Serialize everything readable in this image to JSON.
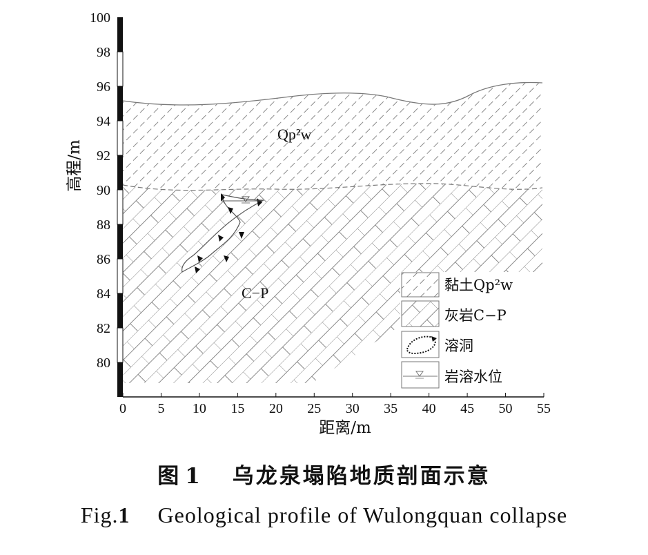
{
  "axes": {
    "y_label": "高程/m",
    "x_label": "距离/m",
    "y_ticks": [
      "100",
      "98",
      "96",
      "94",
      "92",
      "90",
      "88",
      "86",
      "84",
      "82",
      "80"
    ],
    "x_ticks": [
      "0",
      "5",
      "10",
      "15",
      "20",
      "25",
      "30",
      "35",
      "40",
      "45",
      "50",
      "55"
    ],
    "x_range": [
      0,
      55
    ],
    "y_range": [
      78,
      100
    ]
  },
  "regions": {
    "clay_label": "Qp²w",
    "limestone_label": "C−P"
  },
  "legend": {
    "items": [
      {
        "pattern": "clay",
        "label": "黏土Qp²w"
      },
      {
        "pattern": "limestone",
        "label": "灰岩C−P"
      },
      {
        "pattern": "cave",
        "label": "溶洞"
      },
      {
        "pattern": "water",
        "label": "岩溶水位"
      }
    ]
  },
  "caption": {
    "cn_fig": "图",
    "cn_num": "1",
    "cn_title": "乌龙泉塌陷地质剖面示意",
    "en_fig": "Fig.",
    "en_num": "1",
    "en_title": "Geological profile of Wulongquan collapse"
  },
  "colors": {
    "line": "#7a7a7a",
    "dark": "#111111"
  }
}
